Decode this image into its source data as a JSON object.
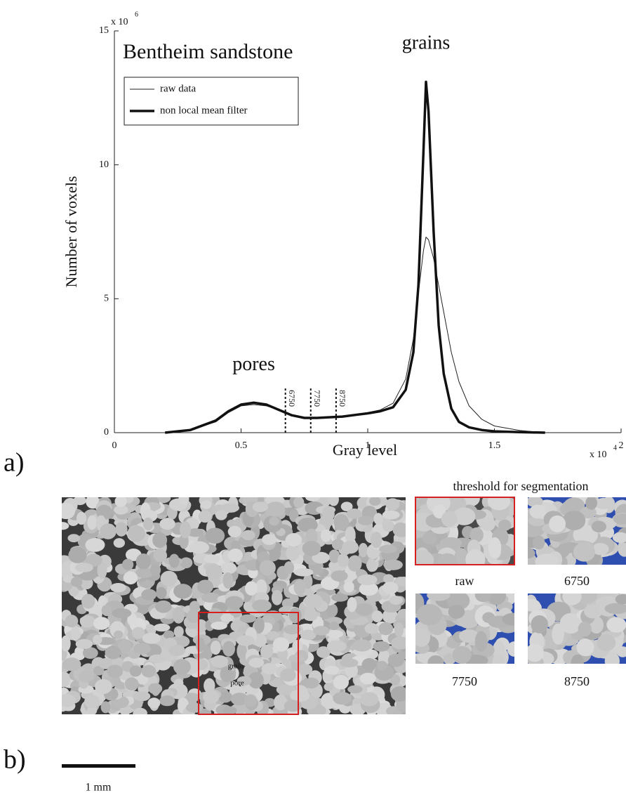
{
  "chart_data": {
    "type": "line",
    "title": "Bentheim sandstone",
    "panel_label": "a)",
    "x_label": "Gray level",
    "y_label": "Number of voxels",
    "x_multiplier": {
      "base": "x 10",
      "exponent": "4"
    },
    "y_multiplier": {
      "base": "x 10",
      "exponent": "6"
    },
    "xlim": [
      0,
      2
    ],
    "ylim": [
      0,
      15
    ],
    "xticks": [
      0,
      0.5,
      1,
      1.5,
      2
    ],
    "yticks": [
      0,
      5,
      10,
      15
    ],
    "x": [
      0.2,
      0.3,
      0.4,
      0.45,
      0.5,
      0.55,
      0.6,
      0.65,
      0.7,
      0.75,
      0.8,
      0.9,
      1.0,
      1.05,
      1.1,
      1.15,
      1.18,
      1.2,
      1.22,
      1.23,
      1.24,
      1.26,
      1.28,
      1.3,
      1.33,
      1.36,
      1.4,
      1.45,
      1.5,
      1.6,
      1.7
    ],
    "series": [
      {
        "name": "raw data",
        "color": "#222222",
        "values": [
          0,
          0.1,
          0.4,
          0.75,
          1.0,
          1.05,
          1.0,
          0.85,
          0.65,
          0.55,
          0.55,
          0.6,
          0.75,
          0.85,
          1.1,
          2.0,
          3.5,
          5.2,
          6.8,
          7.3,
          7.2,
          6.5,
          5.5,
          4.5,
          3,
          1.9,
          1.0,
          0.5,
          0.25,
          0.08,
          0
        ]
      },
      {
        "name": "non local mean filter",
        "color": "#111111",
        "values": [
          0,
          0.1,
          0.45,
          0.8,
          1.05,
          1.12,
          1.05,
          0.85,
          0.65,
          0.55,
          0.55,
          0.6,
          0.72,
          0.8,
          0.95,
          1.6,
          3,
          5.5,
          10.5,
          13.1,
          12,
          7.5,
          4,
          2.2,
          0.9,
          0.4,
          0.2,
          0.1,
          0.05,
          0.02,
          0
        ]
      }
    ],
    "annotations": [
      {
        "text": "grains",
        "x": 1.23,
        "y": 14.5
      },
      {
        "text": "pores",
        "x": 0.55,
        "y": 2.5
      }
    ],
    "thresholds": [
      {
        "value": 0.675,
        "label": "6750"
      },
      {
        "value": 0.775,
        "label": "7750"
      },
      {
        "value": 0.875,
        "label": "8750"
      }
    ],
    "threshold_top": 1.65
  },
  "panel_b": {
    "panel_label": "b)",
    "heading": "threshold for segmentation",
    "captions": [
      "raw",
      "6750",
      "7750",
      "8750"
    ],
    "inset_labels": [
      "grain",
      "pore"
    ],
    "scale_bar": "1 mm"
  }
}
